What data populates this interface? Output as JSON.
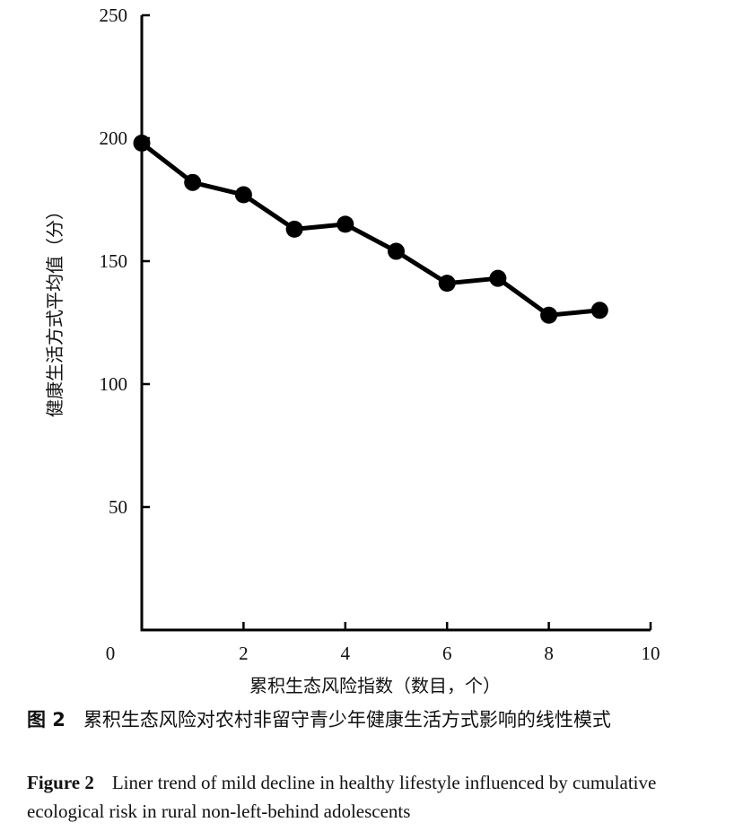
{
  "chart_data": {
    "type": "line",
    "x": [
      0,
      1,
      2,
      3,
      4,
      5,
      6,
      7,
      8,
      9
    ],
    "series": [
      {
        "values": [
          198,
          182,
          177,
          163,
          165,
          154,
          141,
          143,
          128,
          130
        ]
      }
    ],
    "xlabel": "累积生态风险指数（数目，个）",
    "ylabel": "健康生活方式平均值（分）",
    "xlim": [
      0,
      10
    ],
    "ylim": [
      0,
      250
    ],
    "xticks": [
      0,
      2,
      4,
      6,
      8,
      10
    ],
    "yticks": [
      50,
      100,
      150,
      200,
      250
    ],
    "grid": false,
    "legend": "none"
  },
  "caption": {
    "cn_number": "图 2",
    "cn_text": "累积生态风险对农村非留守青少年健康生活方式影响的线性模式",
    "en_number": "Figure 2",
    "en_text": "Liner trend of mild decline in healthy lifestyle influenced by cumulative ecological risk in rural non-left-behind adolescents"
  }
}
